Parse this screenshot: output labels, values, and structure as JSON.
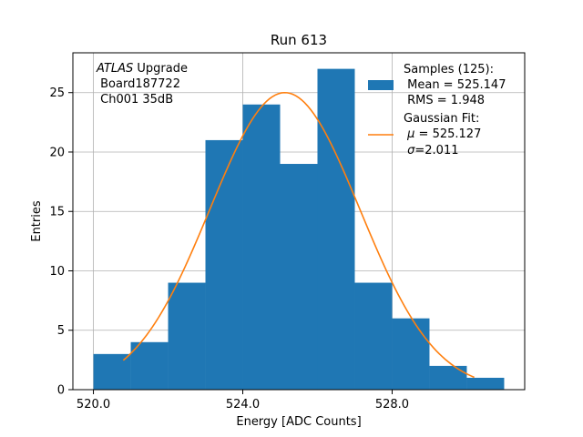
{
  "chart_data": {
    "type": "bar",
    "title": "Run 613",
    "xlabel": "Energy [ADC Counts]",
    "ylabel": "Entries",
    "xlim": [
      519.45,
      531.55
    ],
    "ylim": [
      0,
      28.35
    ],
    "x_ticks": [
      {
        "value": 520,
        "label": "520.0"
      },
      {
        "value": 524,
        "label": "524.0"
      },
      {
        "value": 528,
        "label": "528.0"
      }
    ],
    "y_ticks": [
      {
        "value": 0,
        "label": "0"
      },
      {
        "value": 5,
        "label": "5"
      },
      {
        "value": 10,
        "label": "10"
      },
      {
        "value": 15,
        "label": "15"
      },
      {
        "value": 20,
        "label": "20"
      },
      {
        "value": 25,
        "label": "25"
      }
    ],
    "grid": true,
    "bins": [
      {
        "left": 520,
        "right": 521,
        "count": 3
      },
      {
        "left": 521,
        "right": 522,
        "count": 4
      },
      {
        "left": 522,
        "right": 523,
        "count": 9
      },
      {
        "left": 523,
        "right": 524,
        "count": 21
      },
      {
        "left": 524,
        "right": 525,
        "count": 24
      },
      {
        "left": 525,
        "right": 526,
        "count": 19
      },
      {
        "left": 526,
        "right": 527,
        "count": 27
      },
      {
        "left": 527,
        "right": 528,
        "count": 9
      },
      {
        "left": 528,
        "right": 529,
        "count": 6
      },
      {
        "left": 529,
        "right": 530,
        "count": 2
      },
      {
        "left": 530,
        "right": 531,
        "count": 1
      }
    ],
    "fit": {
      "mu": 525.127,
      "sigma": 2.011,
      "peak": 25,
      "x_range": [
        520.8,
        530.2
      ]
    },
    "colors": {
      "histogram": "#1f77b4",
      "fit": "#ff7f0e"
    },
    "annotation": {
      "italic": "ATLAS",
      "line1_rest": " Upgrade",
      "line2": " Board187722",
      "line3": " Ch001 35dB"
    },
    "legend": {
      "placement": "top-right",
      "samples": {
        "line1": "Samples (125):",
        "line2": " Mean = 525.147",
        "line3": " RMS = 1.948"
      },
      "fit": {
        "line1": "Gaussian Fit:",
        "line2_greek": "μ",
        "line2_rest": " = 525.127",
        "line3_greek": "σ",
        "line3_rest": "=2.011"
      }
    }
  }
}
